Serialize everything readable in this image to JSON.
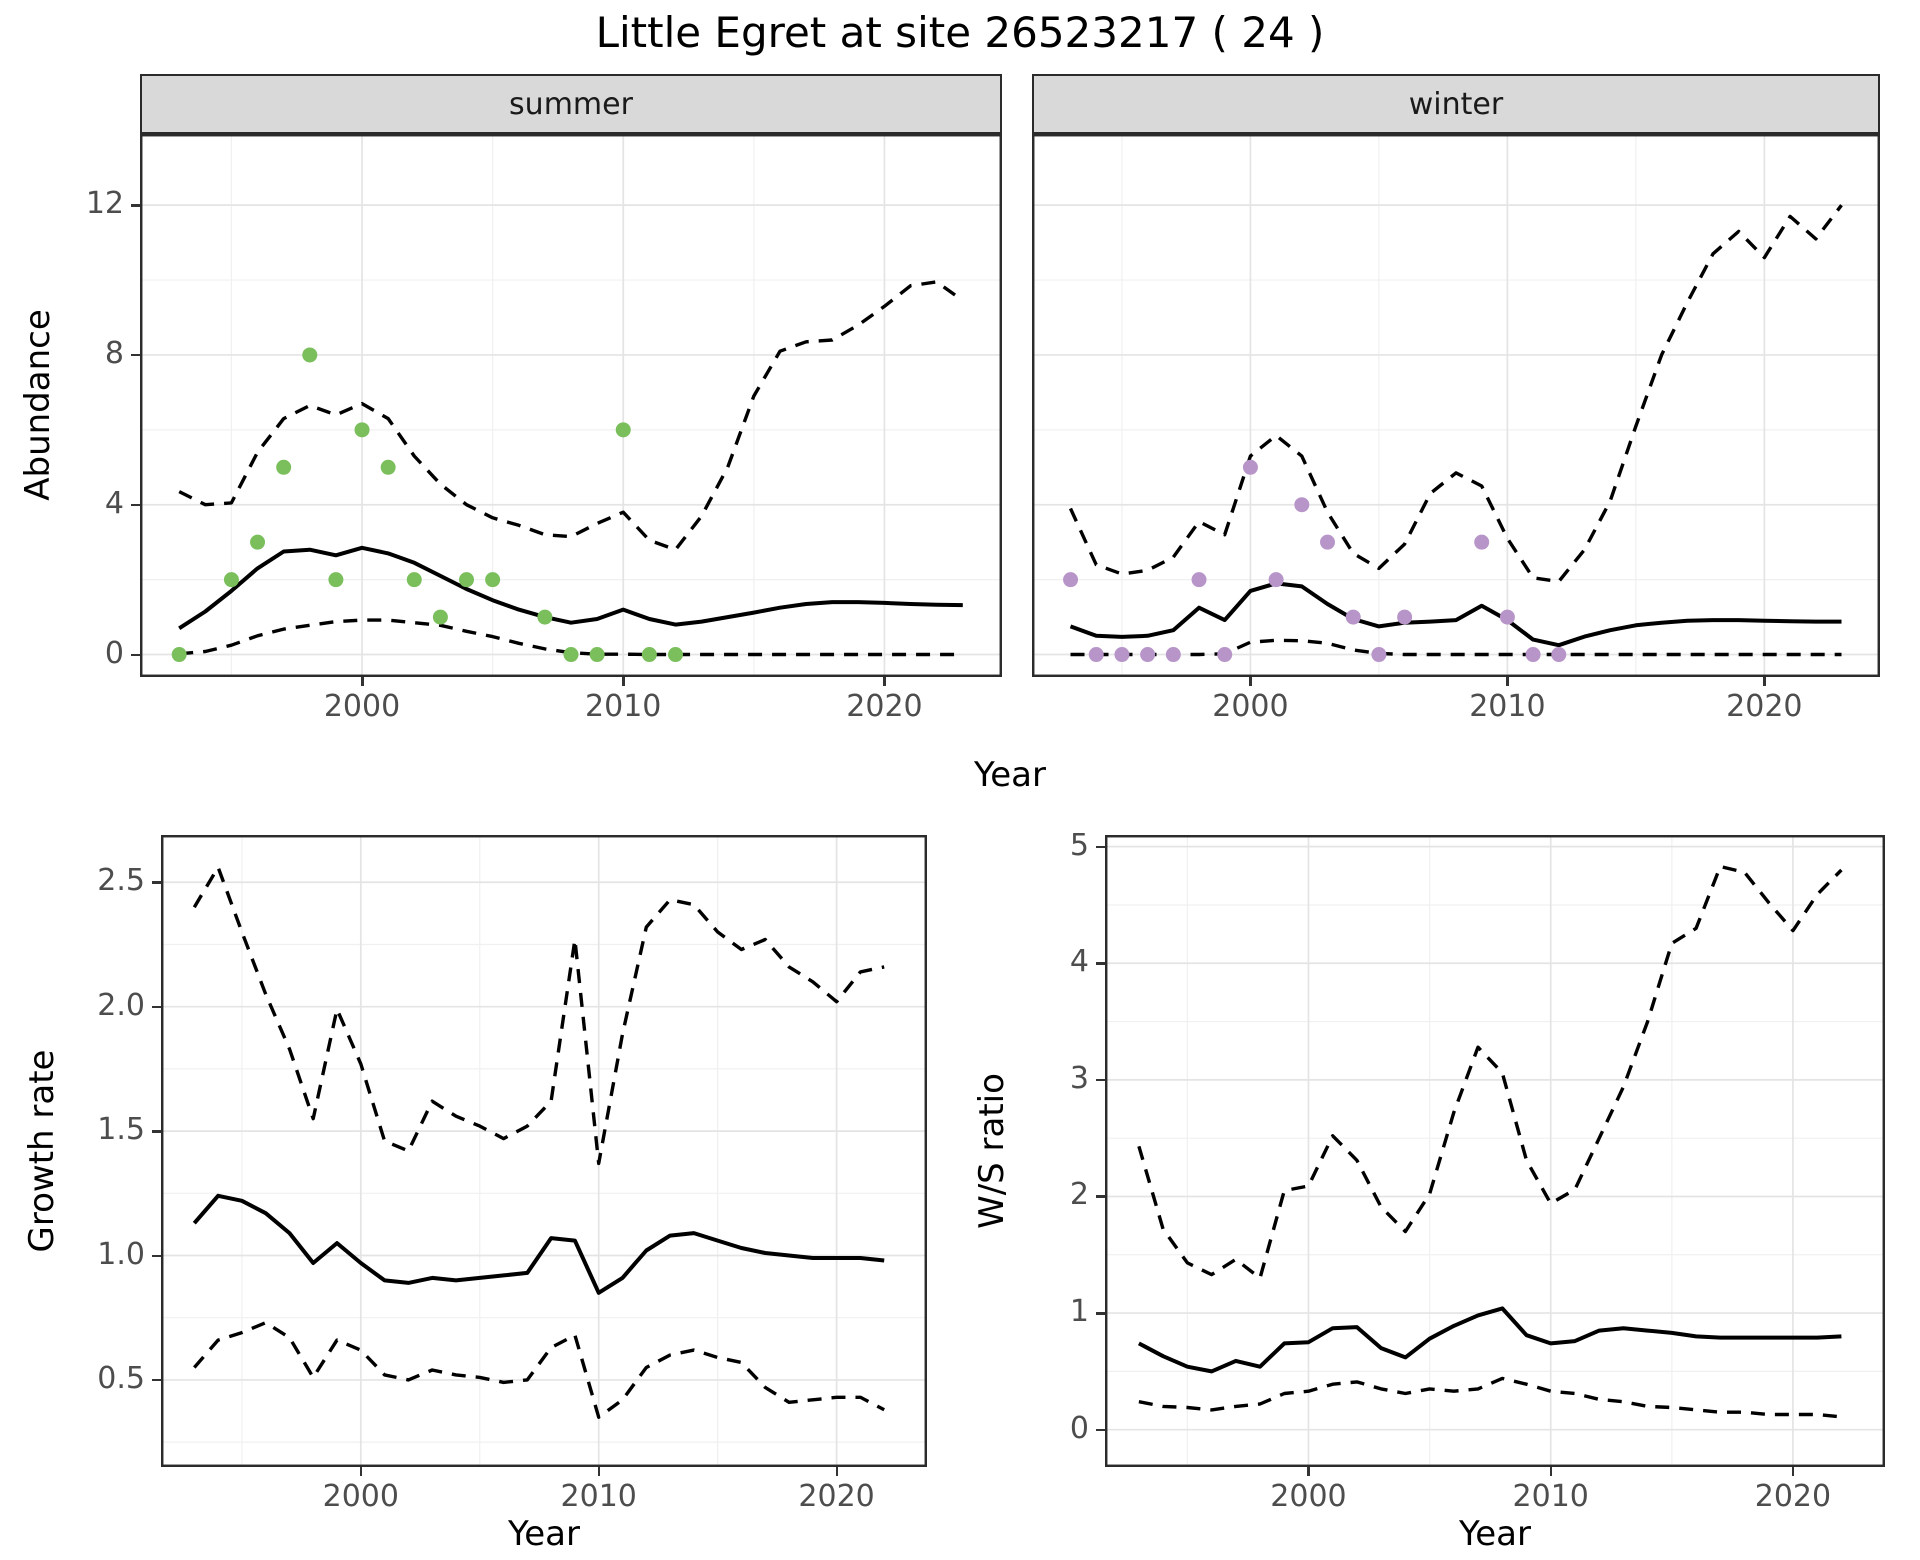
{
  "title": "Little Egret at site 26523217 ( 24 )",
  "colors": {
    "observed_summer": "#7abf5c",
    "observed_winter": "#b795c8",
    "trend_line": "#000000",
    "ci_line": "#000000",
    "strip_bg": "#d9d9d9",
    "panel_bg": "#ffffff",
    "grid_major": "#e4e4e4",
    "grid_minor": "#f0f0f0",
    "panel_border": "#2b2b2b",
    "tick_label": "#4d4d4d"
  },
  "chart_data": [
    {
      "id": "abundance_summer",
      "type": "line",
      "facet_label": "summer",
      "ylabel": "Abundance",
      "xlabel": "Year",
      "xlim": [
        1991.5,
        2024.5
      ],
      "ylim": [
        -0.6,
        13.9
      ],
      "xticks": [
        2000,
        2010,
        2020
      ],
      "xtick_labels": [
        "2000",
        "2010",
        "2020"
      ],
      "xminor": [
        1995,
        2005,
        2015
      ],
      "yticks": [
        0,
        4,
        8,
        12
      ],
      "ytick_labels": [
        "0",
        "4",
        "8",
        "12"
      ],
      "yminor": [
        2,
        6,
        10
      ],
      "grid": true,
      "legend": "none",
      "x": [
        1993,
        1994,
        1995,
        1996,
        1997,
        1998,
        1999,
        2000,
        2001,
        2002,
        2003,
        2004,
        2005,
        2006,
        2007,
        2008,
        2009,
        2010,
        2011,
        2012,
        2013,
        2014,
        2015,
        2016,
        2017,
        2018,
        2019,
        2020,
        2021,
        2022,
        2023
      ],
      "series": [
        {
          "name": "trend",
          "style": "solid",
          "values": [
            0.7,
            1.15,
            1.7,
            2.3,
            2.75,
            2.8,
            2.65,
            2.85,
            2.7,
            2.45,
            2.1,
            1.75,
            1.45,
            1.2,
            1.0,
            0.85,
            0.95,
            1.2,
            0.95,
            0.8,
            0.88,
            1.0,
            1.12,
            1.25,
            1.35,
            1.4,
            1.4,
            1.38,
            1.35,
            1.33,
            1.32
          ]
        },
        {
          "name": "upper_ci",
          "style": "dashed",
          "values": [
            4.35,
            4.0,
            4.05,
            5.4,
            6.3,
            6.65,
            6.4,
            6.7,
            6.3,
            5.3,
            4.55,
            4.0,
            3.65,
            3.45,
            3.2,
            3.15,
            3.5,
            3.8,
            3.05,
            2.8,
            3.7,
            5.0,
            6.9,
            8.1,
            8.35,
            8.4,
            8.8,
            9.3,
            9.85,
            9.95,
            9.45
          ]
        },
        {
          "name": "lower_ci",
          "style": "dashed",
          "values": [
            0.02,
            0.08,
            0.25,
            0.5,
            0.68,
            0.78,
            0.88,
            0.92,
            0.92,
            0.85,
            0.78,
            0.62,
            0.48,
            0.3,
            0.15,
            0.05,
            0.01,
            0.01,
            0,
            0,
            0,
            0,
            0,
            0,
            0,
            0,
            0,
            0,
            0,
            0,
            0
          ]
        }
      ],
      "observed_points": {
        "color_key": "observed_summer",
        "x": [
          1993,
          1995,
          1996,
          1997,
          1998,
          1999,
          2000,
          2001,
          2002,
          2003,
          2004,
          2005,
          2007,
          2008,
          2009,
          2010,
          2011,
          2012
        ],
        "y": [
          0,
          2,
          3,
          5,
          8,
          2,
          6,
          5,
          2,
          1,
          2,
          2,
          1,
          0,
          0,
          6,
          0,
          0
        ]
      }
    },
    {
      "id": "abundance_winter",
      "type": "line",
      "facet_label": "winter",
      "ylabel": "Abundance",
      "xlabel": "Year",
      "xlim": [
        1991.5,
        2024.5
      ],
      "ylim": [
        -0.6,
        13.9
      ],
      "xticks": [
        2000,
        2010,
        2020
      ],
      "xtick_labels": [
        "2000",
        "2010",
        "2020"
      ],
      "xminor": [
        1995,
        2005,
        2015
      ],
      "yticks": [
        0,
        4,
        8,
        12
      ],
      "ytick_labels": [
        "0",
        "4",
        "8",
        "12"
      ],
      "yminor": [
        2,
        6,
        10
      ],
      "grid": true,
      "legend": "none",
      "x": [
        1993,
        1994,
        1995,
        1996,
        1997,
        1998,
        1999,
        2000,
        2001,
        2002,
        2003,
        2004,
        2005,
        2006,
        2007,
        2008,
        2009,
        2010,
        2011,
        2012,
        2013,
        2014,
        2015,
        2016,
        2017,
        2018,
        2019,
        2020,
        2021,
        2022,
        2023
      ],
      "series": [
        {
          "name": "trend",
          "style": "solid",
          "values": [
            0.75,
            0.5,
            0.47,
            0.5,
            0.65,
            1.25,
            0.92,
            1.7,
            1.9,
            1.82,
            1.35,
            0.95,
            0.75,
            0.85,
            0.88,
            0.92,
            1.3,
            0.92,
            0.4,
            0.25,
            0.48,
            0.65,
            0.78,
            0.85,
            0.9,
            0.92,
            0.92,
            0.9,
            0.89,
            0.88,
            0.88
          ]
        },
        {
          "name": "upper_ci",
          "style": "dashed",
          "values": [
            3.9,
            2.4,
            2.15,
            2.25,
            2.6,
            3.55,
            3.2,
            5.3,
            5.85,
            5.3,
            3.8,
            2.7,
            2.3,
            2.95,
            4.3,
            4.85,
            4.5,
            3.1,
            2.05,
            1.95,
            2.8,
            4.1,
            6.1,
            8.0,
            9.4,
            10.7,
            11.3,
            10.6,
            11.7,
            11.1,
            12.0
          ]
        },
        {
          "name": "lower_ci",
          "style": "dashed",
          "values": [
            0,
            0,
            0,
            0,
            0,
            0,
            0.02,
            0.33,
            0.38,
            0.37,
            0.3,
            0.12,
            0.03,
            0,
            0,
            0,
            0,
            0,
            0,
            0,
            0,
            0,
            0,
            0,
            0,
            0,
            0,
            0,
            0,
            0,
            0
          ]
        }
      ],
      "observed_points": {
        "color_key": "observed_winter",
        "x": [
          1993,
          1994,
          1995,
          1996,
          1997,
          1998,
          1999,
          2000,
          2001,
          2002,
          2003,
          2004,
          2005,
          2006,
          2009,
          2010,
          2011,
          2012
        ],
        "y": [
          2,
          0,
          0,
          0,
          0,
          2,
          0,
          5,
          2,
          4,
          3,
          1,
          0,
          1,
          3,
          1,
          0,
          0
        ]
      }
    },
    {
      "id": "growth_rate",
      "type": "line",
      "facet_label": "",
      "ylabel": "Growth rate",
      "xlabel": "Year",
      "xlim": [
        1991.6,
        2023.8
      ],
      "ylim": [
        0.15,
        2.69
      ],
      "xticks": [
        2000,
        2010,
        2020
      ],
      "xtick_labels": [
        "2000",
        "2010",
        "2020"
      ],
      "xminor": [
        1995,
        2005,
        2015
      ],
      "yticks": [
        0.5,
        1.0,
        1.5,
        2.0,
        2.5
      ],
      "ytick_labels": [
        "0.5",
        "1.0",
        "1.5",
        "2.0",
        "2.5"
      ],
      "yminor": [
        0.25,
        0.75,
        1.25,
        1.75,
        2.25
      ],
      "grid": true,
      "legend": "none",
      "x": [
        1993,
        1994,
        1995,
        1996,
        1997,
        1998,
        1999,
        2000,
        2001,
        2002,
        2003,
        2004,
        2005,
        2006,
        2007,
        2008,
        2009,
        2010,
        2011,
        2012,
        2013,
        2014,
        2015,
        2016,
        2017,
        2018,
        2019,
        2020,
        2021,
        2022
      ],
      "series": [
        {
          "name": "trend",
          "style": "solid",
          "values": [
            1.13,
            1.24,
            1.22,
            1.17,
            1.09,
            0.97,
            1.05,
            0.97,
            0.9,
            0.89,
            0.91,
            0.9,
            0.91,
            0.92,
            0.93,
            1.07,
            1.06,
            0.85,
            0.91,
            1.02,
            1.08,
            1.09,
            1.06,
            1.03,
            1.01,
            1.0,
            0.99,
            0.99,
            0.99,
            0.98
          ]
        },
        {
          "name": "upper_ci",
          "style": "dashed",
          "values": [
            2.4,
            2.56,
            2.3,
            2.05,
            1.83,
            1.55,
            1.99,
            1.77,
            1.46,
            1.42,
            1.62,
            1.56,
            1.52,
            1.47,
            1.52,
            1.62,
            2.27,
            1.37,
            1.89,
            2.32,
            2.43,
            2.41,
            2.3,
            2.23,
            2.27,
            2.16,
            2.1,
            2.02,
            2.14,
            2.16
          ]
        },
        {
          "name": "lower_ci",
          "style": "dashed",
          "values": [
            0.55,
            0.66,
            0.69,
            0.73,
            0.67,
            0.51,
            0.66,
            0.62,
            0.52,
            0.5,
            0.54,
            0.52,
            0.51,
            0.49,
            0.5,
            0.63,
            0.68,
            0.35,
            0.42,
            0.55,
            0.6,
            0.62,
            0.59,
            0.57,
            0.47,
            0.41,
            0.42,
            0.43,
            0.43,
            0.38
          ]
        }
      ]
    },
    {
      "id": "ws_ratio",
      "type": "line",
      "facet_label": "",
      "ylabel": "W/S ratio",
      "xlabel": "Year",
      "xlim": [
        1991.6,
        2023.8
      ],
      "ylim": [
        -0.32,
        5.1
      ],
      "xticks": [
        2000,
        2010,
        2020
      ],
      "xtick_labels": [
        "2000",
        "2010",
        "2020"
      ],
      "xminor": [
        1995,
        2005,
        2015
      ],
      "yticks": [
        0,
        1,
        2,
        3,
        4,
        5
      ],
      "ytick_labels": [
        "0",
        "1",
        "2",
        "3",
        "4",
        "5"
      ],
      "yminor": [
        0.5,
        1.5,
        2.5,
        3.5,
        4.5
      ],
      "grid": true,
      "legend": "none",
      "x": [
        1993,
        1994,
        1995,
        1996,
        1997,
        1998,
        1999,
        2000,
        2001,
        2002,
        2003,
        2004,
        2005,
        2006,
        2007,
        2008,
        2009,
        2010,
        2011,
        2012,
        2013,
        2014,
        2015,
        2016,
        2017,
        2018,
        2019,
        2020,
        2021,
        2022
      ],
      "series": [
        {
          "name": "trend",
          "style": "solid",
          "values": [
            0.74,
            0.63,
            0.54,
            0.5,
            0.59,
            0.54,
            0.74,
            0.75,
            0.87,
            0.88,
            0.7,
            0.62,
            0.78,
            0.89,
            0.98,
            1.04,
            0.81,
            0.74,
            0.76,
            0.85,
            0.87,
            0.85,
            0.83,
            0.8,
            0.79,
            0.79,
            0.79,
            0.79,
            0.79,
            0.8
          ]
        },
        {
          "name": "upper_ci",
          "style": "dashed",
          "values": [
            2.43,
            1.72,
            1.43,
            1.33,
            1.46,
            1.3,
            2.05,
            2.09,
            2.52,
            2.31,
            1.91,
            1.7,
            2.02,
            2.72,
            3.28,
            3.06,
            2.31,
            1.94,
            2.06,
            2.5,
            2.94,
            3.5,
            4.17,
            4.3,
            4.83,
            4.78,
            4.52,
            4.28,
            4.59,
            4.8
          ]
        },
        {
          "name": "lower_ci",
          "style": "dashed",
          "values": [
            0.24,
            0.2,
            0.19,
            0.17,
            0.2,
            0.22,
            0.31,
            0.33,
            0.39,
            0.41,
            0.35,
            0.31,
            0.35,
            0.33,
            0.35,
            0.44,
            0.39,
            0.33,
            0.31,
            0.26,
            0.24,
            0.2,
            0.19,
            0.17,
            0.15,
            0.15,
            0.13,
            0.13,
            0.13,
            0.11
          ]
        }
      ]
    }
  ]
}
